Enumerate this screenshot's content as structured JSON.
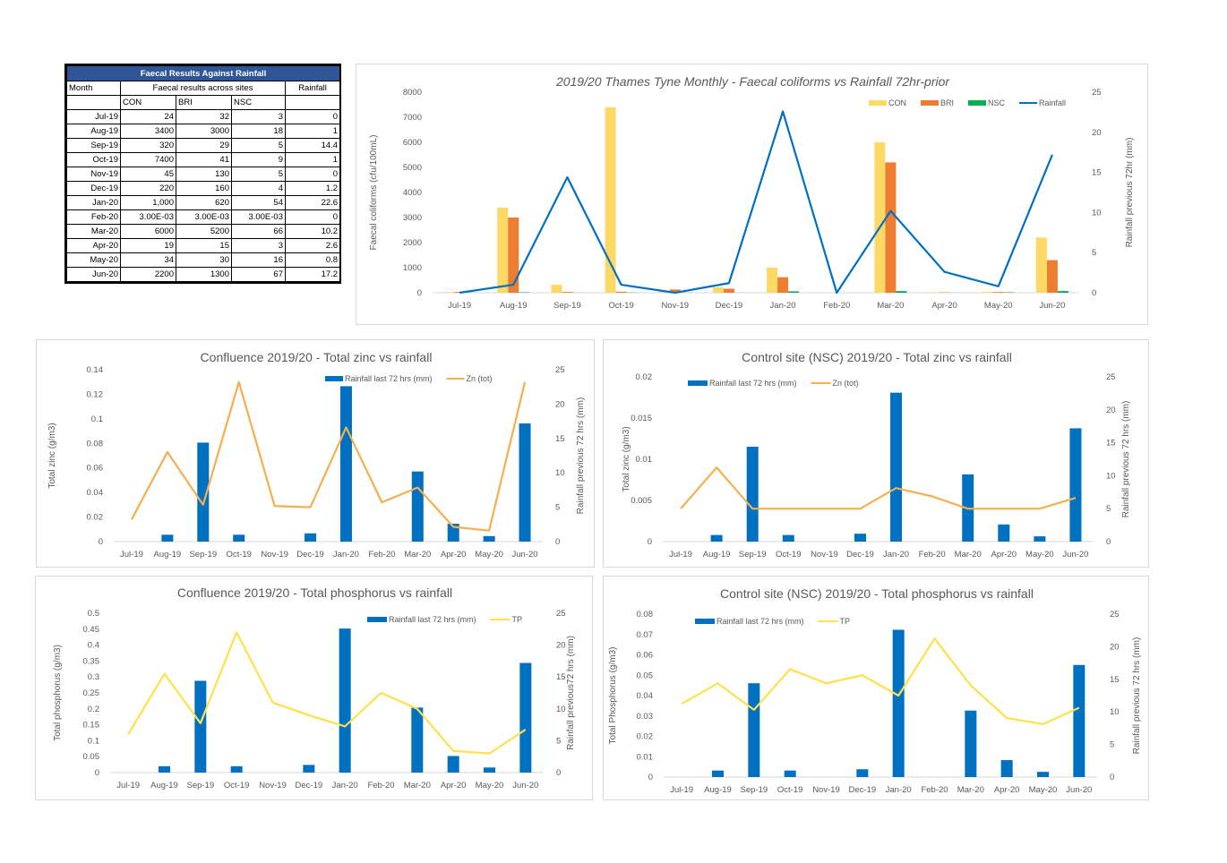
{
  "table": {
    "title": "Faecal Results Against Rainfall",
    "col_month": "Month",
    "col_group": "Faecal results across sites",
    "col_rain": "Rainfall",
    "sub_headers": [
      "CON",
      "BRI",
      "NSC"
    ],
    "rows": [
      [
        "Jul-19",
        "24",
        "32",
        "3",
        "0"
      ],
      [
        "Aug-19",
        "3400",
        "3000",
        "18",
        "1"
      ],
      [
        "Sep-19",
        "320",
        "29",
        "5",
        "14.4"
      ],
      [
        "Oct-19",
        "7400",
        "41",
        "9",
        "1"
      ],
      [
        "Nov-19",
        "45",
        "130",
        "5",
        "0"
      ],
      [
        "Dec-19",
        "220",
        "160",
        "4",
        "1.2"
      ],
      [
        "Jan-20",
        "1,000",
        "620",
        "54",
        "22.6"
      ],
      [
        "Feb-20",
        "3.00E-03",
        "3.00E-03",
        "3.00E-03",
        "0"
      ],
      [
        "Mar-20",
        "6000",
        "5200",
        "66",
        "10.2"
      ],
      [
        "Apr-20",
        "19",
        "15",
        "3",
        "2.6"
      ],
      [
        "May-20",
        "34",
        "30",
        "16",
        "0.8"
      ],
      [
        "Jun-20",
        "2200",
        "1300",
        "67",
        "17.2"
      ]
    ]
  },
  "colors": {
    "con": "#ffd966",
    "bri": "#ed7d31",
    "nsc": "#00b050",
    "rain_line": "#0070c0",
    "rain_bar": "#0070c0",
    "zn": "#f4b04f",
    "tp": "#ffe14a",
    "header": "#2f5597"
  },
  "chart_data": [
    {
      "type": "bar",
      "title": "2019/20 Thames Tyne Monthly - Faecal coliforms vs Rainfall 72hr-prior",
      "categories": [
        "Jul-19",
        "Aug-19",
        "Sep-19",
        "Oct-19",
        "Nov-19",
        "Dec-19",
        "Jan-20",
        "Feb-20",
        "Mar-20",
        "Apr-20",
        "May-20",
        "Jun-20"
      ],
      "series": [
        {
          "name": "CON",
          "kind": "bar",
          "axis": "left",
          "values": [
            24,
            3400,
            320,
            7400,
            45,
            220,
            1000,
            0.003,
            6000,
            19,
            34,
            2200
          ]
        },
        {
          "name": "BRI",
          "kind": "bar",
          "axis": "left",
          "values": [
            32,
            3000,
            29,
            41,
            130,
            160,
            620,
            0.003,
            5200,
            15,
            30,
            1300
          ]
        },
        {
          "name": "NSC",
          "kind": "bar",
          "axis": "left",
          "values": [
            3,
            18,
            5,
            9,
            5,
            4,
            54,
            0.003,
            66,
            3,
            16,
            67
          ]
        },
        {
          "name": "Rainfall",
          "kind": "line",
          "axis": "right",
          "values": [
            0,
            1,
            14.4,
            1,
            0,
            1.2,
            22.6,
            0,
            10.2,
            2.6,
            0.8,
            17.2
          ]
        }
      ],
      "ylabel": "Faecal coliforms (cfu/100mL)",
      "y2label": "Rainfall  previous 72hr (mm)",
      "ylim": [
        0,
        8000
      ],
      "yticks": [
        "0",
        "1000",
        "2000",
        "3000",
        "4000",
        "5000",
        "6000",
        "7000",
        "8000"
      ],
      "y2lim": [
        0,
        25
      ],
      "y2ticks": [
        "0",
        "5",
        "10",
        "15",
        "20",
        "25"
      ],
      "legend_position": "top-right",
      "grid": false
    },
    {
      "type": "bar",
      "title": "Confluence 2019/20 - Total zinc vs rainfall",
      "categories": [
        "Jul-19",
        "Aug-19",
        "Sep-19",
        "Oct-19",
        "Nov-19",
        "Dec-19",
        "Jan-20",
        "Feb-20",
        "Mar-20",
        "Apr-20",
        "May-20",
        "Jun-20"
      ],
      "series": [
        {
          "name": "Rainfall last 72 hrs (mm)",
          "kind": "bar",
          "axis": "right",
          "values": [
            0,
            1,
            14.4,
            1,
            0,
            1.2,
            22.6,
            0,
            10.2,
            2.6,
            0.8,
            17.2
          ]
        },
        {
          "name": "Zn (tot)",
          "kind": "line",
          "axis": "left",
          "values": [
            0.018,
            0.073,
            0.03,
            0.13,
            0.029,
            0.028,
            0.093,
            0.032,
            0.044,
            0.012,
            0.009,
            0.13
          ]
        }
      ],
      "ylabel": "Total zinc (g/m3)",
      "y2label": "Rainfall previous 72 hrs (mm)",
      "ylim": [
        0,
        0.14
      ],
      "yticks": [
        "0",
        "0.02",
        "0.04",
        "0.06",
        "0.08",
        "0.1",
        "0.12",
        "0.14"
      ],
      "y2lim": [
        0,
        25
      ],
      "y2ticks": [
        "0",
        "5",
        "10",
        "15",
        "20",
        "25"
      ],
      "legend_position": "top-center",
      "grid": false
    },
    {
      "type": "bar",
      "title": "Control site (NSC) 2019/20 - Total zinc vs rainfall",
      "categories": [
        "Jul-19",
        "Aug-19",
        "Sep-19",
        "Oct-19",
        "Nov-19",
        "Dec-19",
        "Jan-20",
        "Feb-20",
        "Mar-20",
        "Apr-20",
        "May-20",
        "Jun-20"
      ],
      "series": [
        {
          "name": "Rainfall last 72 hrs (mm)",
          "kind": "bar",
          "axis": "right",
          "values": [
            0,
            1,
            14.4,
            1,
            0,
            1.2,
            22.6,
            0,
            10.2,
            2.6,
            0.8,
            17.2
          ]
        },
        {
          "name": "Zn (tot)",
          "kind": "line",
          "axis": "left",
          "values": [
            0.004,
            0.009,
            0.004,
            0.004,
            0.004,
            0.004,
            0.0065,
            0.0055,
            0.004,
            0.004,
            0.004,
            0.0053
          ]
        }
      ],
      "ylabel": "Total zinc (g/m3)",
      "y2label": "Rainfall previous 72 hrs (mm)",
      "ylim": [
        0,
        0.02
      ],
      "yticks": [
        "0",
        "0.005",
        "0.01",
        "0.015",
        "0.02"
      ],
      "y2lim": [
        0,
        25
      ],
      "y2ticks": [
        "0",
        "5",
        "10",
        "15",
        "20",
        "25"
      ],
      "legend_position": "top-left",
      "grid": false
    },
    {
      "type": "bar",
      "title": "Confluence 2019/20 - Total phosphorus vs rainfall",
      "categories": [
        "Jul-19",
        "Aug-19",
        "Sep-19",
        "Oct-19",
        "Nov-19",
        "Dec-19",
        "Jan-20",
        "Feb-20",
        "Mar-20",
        "Apr-20",
        "May-20",
        "Jun-20"
      ],
      "series": [
        {
          "name": "Rainfall last 72 hrs (mm)",
          "kind": "bar",
          "axis": "right",
          "values": [
            0,
            1,
            14.4,
            1,
            0,
            1.2,
            22.6,
            0,
            10.2,
            2.6,
            0.8,
            17.2
          ]
        },
        {
          "name": "TP",
          "kind": "line",
          "axis": "left",
          "values": [
            0.12,
            0.31,
            0.155,
            0.44,
            0.22,
            0.18,
            0.145,
            0.25,
            0.2,
            0.068,
            0.06,
            0.135
          ]
        }
      ],
      "ylabel": "Total phosphorus (g/m3)",
      "y2label": "Rainfall previous72 hrs (mm)",
      "ylim": [
        0,
        0.5
      ],
      "yticks": [
        "0",
        "0.05",
        "0.1",
        "0.15",
        "0.2",
        "0.25",
        "0.3",
        "0.35",
        "0.4",
        "0.45",
        "0.5"
      ],
      "y2lim": [
        0,
        25
      ],
      "y2ticks": [
        "0",
        "5",
        "10",
        "15",
        "20",
        "25"
      ],
      "legend_position": "top-right",
      "grid": false
    },
    {
      "type": "bar",
      "title": "Control site (NSC) 2019/20 - Total phosphorus vs rainfall",
      "categories": [
        "Jul-19",
        "Aug-19",
        "Sep-19",
        "Oct-19",
        "Nov-19",
        "Dec-19",
        "Jan-20",
        "Feb-20",
        "Mar-20",
        "Apr-20",
        "May-20",
        "Jun-20"
      ],
      "series": [
        {
          "name": "Rainfall last 72 hrs (mm)",
          "kind": "bar",
          "axis": "right",
          "values": [
            0,
            1,
            14.4,
            1,
            0,
            1.2,
            22.6,
            0,
            10.2,
            2.6,
            0.8,
            17.2
          ]
        },
        {
          "name": "TP",
          "kind": "line",
          "axis": "left",
          "values": [
            0.036,
            0.046,
            0.033,
            0.053,
            0.046,
            0.05,
            0.04,
            0.068,
            0.045,
            0.029,
            0.026,
            0.034
          ]
        }
      ],
      "ylabel": "Total Phosphorus (g/m3)",
      "y2label": "Rainfall previous 72 hrs (mm)",
      "ylim": [
        0,
        0.08
      ],
      "yticks": [
        "0",
        "0.01",
        "0.02",
        "0.03",
        "0.04",
        "0.05",
        "0.06",
        "0.07",
        "0.08"
      ],
      "y2lim": [
        0,
        25
      ],
      "y2ticks": [
        "0",
        "5",
        "10",
        "15",
        "20",
        "25"
      ],
      "legend_position": "top-left",
      "grid": false
    }
  ]
}
